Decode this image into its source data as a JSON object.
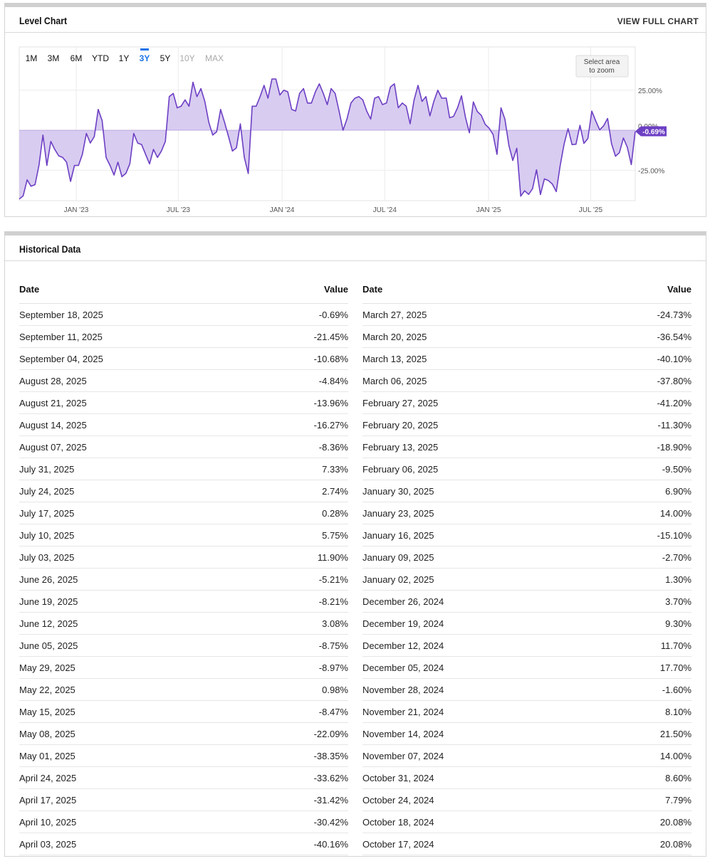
{
  "chart_panel": {
    "title": "Level Chart",
    "view_full_label": "VIEW FULL CHART",
    "zoom_hint": [
      "Select area",
      "to zoom"
    ],
    "range_buttons": [
      {
        "label": "1M",
        "state": "enabled"
      },
      {
        "label": "3M",
        "state": "enabled"
      },
      {
        "label": "6M",
        "state": "enabled"
      },
      {
        "label": "YTD",
        "state": "enabled"
      },
      {
        "label": "1Y",
        "state": "enabled"
      },
      {
        "label": "3Y",
        "state": "active"
      },
      {
        "label": "5Y",
        "state": "enabled"
      },
      {
        "label": "10Y",
        "state": "disabled"
      },
      {
        "label": "MAX",
        "state": "disabled"
      }
    ]
  },
  "chart_data": {
    "type": "area",
    "line_color": "#6d3fc4",
    "fill_color": "#d6c9f0",
    "current_label_color": "#6d3fc4",
    "ylim": [
      -44,
      52
    ],
    "y_ticks": [
      {
        "value": 25,
        "label": "25.00%"
      },
      {
        "value": 0,
        "label": "0.00%"
      },
      {
        "value": -25,
        "label": "-25.00%"
      }
    ],
    "x_ticks": [
      {
        "value": "2023-01-01",
        "label": "JAN '23"
      },
      {
        "value": "2023-07-01",
        "label": "JUL '23"
      },
      {
        "value": "2024-01-01",
        "label": "JAN '24"
      },
      {
        "value": "2024-07-01",
        "label": "JUL '24"
      },
      {
        "value": "2025-01-01",
        "label": "JAN '25"
      },
      {
        "value": "2025-07-01",
        "label": "JUL '25"
      }
    ],
    "x_range": [
      "2022-09-22",
      "2025-09-18"
    ],
    "current_value_label": "-0.69%",
    "series": [
      {
        "points": [
          [
            "2022-09-22",
            -43
          ],
          [
            "2022-09-29",
            -41
          ],
          [
            "2022-10-06",
            -31
          ],
          [
            "2022-10-13",
            -35
          ],
          [
            "2022-10-20",
            -34
          ],
          [
            "2022-10-27",
            -22
          ],
          [
            "2022-11-03",
            -3
          ],
          [
            "2022-11-10",
            -22
          ],
          [
            "2022-11-17",
            -7
          ],
          [
            "2022-11-24",
            -12
          ],
          [
            "2022-12-01",
            -16
          ],
          [
            "2022-12-08",
            -17
          ],
          [
            "2022-12-15",
            -20
          ],
          [
            "2022-12-22",
            -32
          ],
          [
            "2022-12-29",
            -22
          ],
          [
            "2023-01-05",
            -22
          ],
          [
            "2023-01-12",
            -15
          ],
          [
            "2023-01-19",
            -2
          ],
          [
            "2023-01-26",
            -8
          ],
          [
            "2023-02-02",
            -4
          ],
          [
            "2023-02-09",
            13
          ],
          [
            "2023-02-16",
            6
          ],
          [
            "2023-02-23",
            -17
          ],
          [
            "2023-03-02",
            -22
          ],
          [
            "2023-03-09",
            -28
          ],
          [
            "2023-03-16",
            -20
          ],
          [
            "2023-03-23",
            -29
          ],
          [
            "2023-03-30",
            -27
          ],
          [
            "2023-04-06",
            -21
          ],
          [
            "2023-04-13",
            -2
          ],
          [
            "2023-04-20",
            -8
          ],
          [
            "2023-04-27",
            -9
          ],
          [
            "2023-05-04",
            -15
          ],
          [
            "2023-05-11",
            -21
          ],
          [
            "2023-05-18",
            -12
          ],
          [
            "2023-05-25",
            -17
          ],
          [
            "2023-06-01",
            -13
          ],
          [
            "2023-06-08",
            -7
          ],
          [
            "2023-06-15",
            21
          ],
          [
            "2023-06-22",
            23
          ],
          [
            "2023-06-29",
            14
          ],
          [
            "2023-07-06",
            15
          ],
          [
            "2023-07-13",
            19
          ],
          [
            "2023-07-20",
            15
          ],
          [
            "2023-07-27",
            30
          ],
          [
            "2023-08-03",
            21
          ],
          [
            "2023-08-10",
            26
          ],
          [
            "2023-08-17",
            18
          ],
          [
            "2023-08-24",
            5
          ],
          [
            "2023-08-31",
            -3
          ],
          [
            "2023-09-07",
            -1
          ],
          [
            "2023-09-14",
            13
          ],
          [
            "2023-09-21",
            5
          ],
          [
            "2023-09-28",
            -4
          ],
          [
            "2023-10-05",
            -13
          ],
          [
            "2023-10-12",
            -11
          ],
          [
            "2023-10-19",
            4
          ],
          [
            "2023-10-26",
            -17
          ],
          [
            "2023-11-02",
            -27
          ],
          [
            "2023-11-09",
            15
          ],
          [
            "2023-11-16",
            15
          ],
          [
            "2023-11-23",
            21
          ],
          [
            "2023-11-30",
            28
          ],
          [
            "2023-12-07",
            20
          ],
          [
            "2023-12-14",
            32
          ],
          [
            "2023-12-21",
            32
          ],
          [
            "2023-12-28",
            22
          ],
          [
            "2024-01-04",
            25
          ],
          [
            "2024-01-11",
            24
          ],
          [
            "2024-01-18",
            13
          ],
          [
            "2024-01-25",
            12
          ],
          [
            "2024-02-01",
            23
          ],
          [
            "2024-02-08",
            26
          ],
          [
            "2024-02-15",
            17
          ],
          [
            "2024-02-22",
            17
          ],
          [
            "2024-02-29",
            24
          ],
          [
            "2024-03-07",
            29
          ],
          [
            "2024-03-14",
            23
          ],
          [
            "2024-03-21",
            16
          ],
          [
            "2024-03-28",
            26
          ],
          [
            "2024-04-04",
            23
          ],
          [
            "2024-04-11",
            12
          ],
          [
            "2024-04-18",
            0
          ],
          [
            "2024-04-25",
            7
          ],
          [
            "2024-05-02",
            17
          ],
          [
            "2024-05-09",
            20
          ],
          [
            "2024-05-16",
            21
          ],
          [
            "2024-05-23",
            19
          ],
          [
            "2024-05-30",
            12
          ],
          [
            "2024-06-06",
            7
          ],
          [
            "2024-06-13",
            20
          ],
          [
            "2024-06-20",
            21
          ],
          [
            "2024-06-27",
            16
          ],
          [
            "2024-07-04",
            17
          ],
          [
            "2024-07-11",
            27
          ],
          [
            "2024-07-18",
            29
          ],
          [
            "2024-07-25",
            14
          ],
          [
            "2024-08-01",
            17
          ],
          [
            "2024-08-08",
            15
          ],
          [
            "2024-08-15",
            4
          ],
          [
            "2024-08-22",
            19
          ],
          [
            "2024-08-29",
            28
          ],
          [
            "2024-09-05",
            18
          ],
          [
            "2024-09-12",
            21
          ],
          [
            "2024-09-19",
            9
          ],
          [
            "2024-09-26",
            18
          ],
          [
            "2024-10-03",
            25
          ],
          [
            "2024-10-10",
            20
          ],
          [
            "2024-10-17",
            20.08
          ],
          [
            "2024-10-18",
            20.08
          ],
          [
            "2024-10-24",
            7.79
          ],
          [
            "2024-10-31",
            8.6
          ],
          [
            "2024-11-07",
            14.0
          ],
          [
            "2024-11-14",
            21.5
          ],
          [
            "2024-11-21",
            8.1
          ],
          [
            "2024-11-28",
            -1.6
          ],
          [
            "2024-12-05",
            17.7
          ],
          [
            "2024-12-12",
            11.7
          ],
          [
            "2024-12-19",
            9.3
          ],
          [
            "2024-12-26",
            3.7
          ],
          [
            "2025-01-02",
            1.3
          ],
          [
            "2025-01-09",
            -2.7
          ],
          [
            "2025-01-16",
            -15.1
          ],
          [
            "2025-01-23",
            14.0
          ],
          [
            "2025-01-30",
            6.9
          ],
          [
            "2025-02-06",
            -9.5
          ],
          [
            "2025-02-13",
            -18.9
          ],
          [
            "2025-02-20",
            -11.3
          ],
          [
            "2025-02-27",
            -41.2
          ],
          [
            "2025-03-06",
            -37.8
          ],
          [
            "2025-03-13",
            -40.1
          ],
          [
            "2025-03-20",
            -36.54
          ],
          [
            "2025-03-27",
            -24.73
          ],
          [
            "2025-04-03",
            -40.16
          ],
          [
            "2025-04-10",
            -30.42
          ],
          [
            "2025-04-17",
            -31.42
          ],
          [
            "2025-04-24",
            -33.62
          ],
          [
            "2025-05-01",
            -38.35
          ],
          [
            "2025-05-08",
            -22.09
          ],
          [
            "2025-05-15",
            -8.47
          ],
          [
            "2025-05-22",
            0.98
          ],
          [
            "2025-05-29",
            -8.97
          ],
          [
            "2025-06-05",
            -8.75
          ],
          [
            "2025-06-12",
            3.08
          ],
          [
            "2025-06-19",
            -8.21
          ],
          [
            "2025-06-26",
            -5.21
          ],
          [
            "2025-07-03",
            11.9
          ],
          [
            "2025-07-10",
            5.75
          ],
          [
            "2025-07-17",
            0.28
          ],
          [
            "2025-07-24",
            2.74
          ],
          [
            "2025-07-31",
            7.33
          ],
          [
            "2025-08-07",
            -8.36
          ],
          [
            "2025-08-14",
            -16.27
          ],
          [
            "2025-08-21",
            -13.96
          ],
          [
            "2025-08-28",
            -4.84
          ],
          [
            "2025-09-04",
            -10.68
          ],
          [
            "2025-09-11",
            -21.45
          ],
          [
            "2025-09-18",
            -0.69
          ]
        ]
      }
    ]
  },
  "historical": {
    "title": "Historical Data",
    "col_date_label": "Date",
    "col_value_label": "Value",
    "left_rows": [
      {
        "date": "September 18, 2025",
        "value": "-0.69%"
      },
      {
        "date": "September 11, 2025",
        "value": "-21.45%"
      },
      {
        "date": "September 04, 2025",
        "value": "-10.68%"
      },
      {
        "date": "August 28, 2025",
        "value": "-4.84%"
      },
      {
        "date": "August 21, 2025",
        "value": "-13.96%"
      },
      {
        "date": "August 14, 2025",
        "value": "-16.27%"
      },
      {
        "date": "August 07, 2025",
        "value": "-8.36%"
      },
      {
        "date": "July 31, 2025",
        "value": "7.33%"
      },
      {
        "date": "July 24, 2025",
        "value": "2.74%"
      },
      {
        "date": "July 17, 2025",
        "value": "0.28%"
      },
      {
        "date": "July 10, 2025",
        "value": "5.75%"
      },
      {
        "date": "July 03, 2025",
        "value": "11.90%"
      },
      {
        "date": "June 26, 2025",
        "value": "-5.21%"
      },
      {
        "date": "June 19, 2025",
        "value": "-8.21%"
      },
      {
        "date": "June 12, 2025",
        "value": "3.08%"
      },
      {
        "date": "June 05, 2025",
        "value": "-8.75%"
      },
      {
        "date": "May 29, 2025",
        "value": "-8.97%"
      },
      {
        "date": "May 22, 2025",
        "value": "0.98%"
      },
      {
        "date": "May 15, 2025",
        "value": "-8.47%"
      },
      {
        "date": "May 08, 2025",
        "value": "-22.09%"
      },
      {
        "date": "May 01, 2025",
        "value": "-38.35%"
      },
      {
        "date": "April 24, 2025",
        "value": "-33.62%"
      },
      {
        "date": "April 17, 2025",
        "value": "-31.42%"
      },
      {
        "date": "April 10, 2025",
        "value": "-30.42%"
      },
      {
        "date": "April 03, 2025",
        "value": "-40.16%"
      }
    ],
    "right_rows": [
      {
        "date": "March 27, 2025",
        "value": "-24.73%"
      },
      {
        "date": "March 20, 2025",
        "value": "-36.54%"
      },
      {
        "date": "March 13, 2025",
        "value": "-40.10%"
      },
      {
        "date": "March 06, 2025",
        "value": "-37.80%"
      },
      {
        "date": "February 27, 2025",
        "value": "-41.20%"
      },
      {
        "date": "February 20, 2025",
        "value": "-11.30%"
      },
      {
        "date": "February 13, 2025",
        "value": "-18.90%"
      },
      {
        "date": "February 06, 2025",
        "value": "-9.50%"
      },
      {
        "date": "January 30, 2025",
        "value": "6.90%"
      },
      {
        "date": "January 23, 2025",
        "value": "14.00%"
      },
      {
        "date": "January 16, 2025",
        "value": "-15.10%"
      },
      {
        "date": "January 09, 2025",
        "value": "-2.70%"
      },
      {
        "date": "January 02, 2025",
        "value": "1.30%"
      },
      {
        "date": "December 26, 2024",
        "value": "3.70%"
      },
      {
        "date": "December 19, 2024",
        "value": "9.30%"
      },
      {
        "date": "December 12, 2024",
        "value": "11.70%"
      },
      {
        "date": "December 05, 2024",
        "value": "17.70%"
      },
      {
        "date": "November 28, 2024",
        "value": "-1.60%"
      },
      {
        "date": "November 21, 2024",
        "value": "8.10%"
      },
      {
        "date": "November 14, 2024",
        "value": "21.50%"
      },
      {
        "date": "November 07, 2024",
        "value": "14.00%"
      },
      {
        "date": "October 31, 2024",
        "value": "8.60%"
      },
      {
        "date": "October 24, 2024",
        "value": "7.79%"
      },
      {
        "date": "October 18, 2024",
        "value": "20.08%"
      },
      {
        "date": "October 17, 2024",
        "value": "20.08%"
      }
    ]
  }
}
